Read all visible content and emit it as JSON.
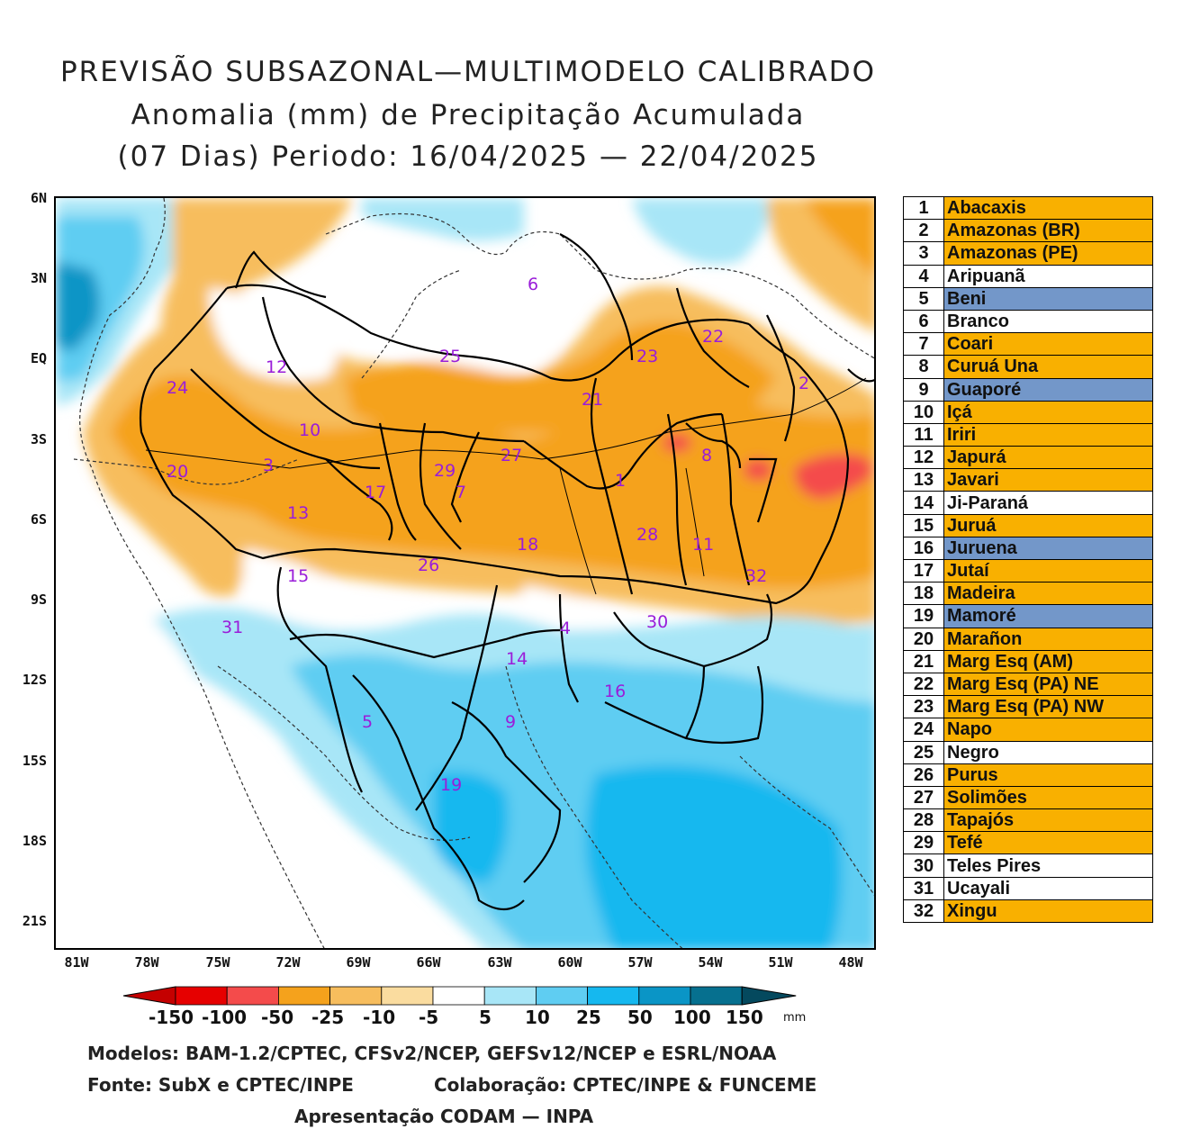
{
  "title": {
    "line1": "PREVISÃO SUBSAZONAL—MULTIMODELO CALIBRADO",
    "line2": "Anomalia (mm) de Precipitação Acumulada",
    "line3": "(07 Dias) Periodo: 16/04/2025 — 22/04/2025"
  },
  "axes": {
    "lat_labels": [
      "6N",
      "3N",
      "EQ",
      "3S",
      "6S",
      "9S",
      "12S",
      "15S",
      "18S",
      "21S"
    ],
    "lon_labels": [
      "81W",
      "78W",
      "75W",
      "72W",
      "69W",
      "66W",
      "63W",
      "60W",
      "57W",
      "54W",
      "51W",
      "48W"
    ]
  },
  "basins": [
    {
      "num": "1",
      "name": "Abacaxis",
      "status": "dry"
    },
    {
      "num": "2",
      "name": "Amazonas (BR)",
      "status": "dry"
    },
    {
      "num": "3",
      "name": "Amazonas (PE)",
      "status": "dry"
    },
    {
      "num": "4",
      "name": "Aripuanã",
      "status": "neutral"
    },
    {
      "num": "5",
      "name": "Beni",
      "status": "wet"
    },
    {
      "num": "6",
      "name": "Branco",
      "status": "neutral"
    },
    {
      "num": "7",
      "name": "Coari",
      "status": "dry"
    },
    {
      "num": "8",
      "name": "Curuá Una",
      "status": "dry"
    },
    {
      "num": "9",
      "name": "Guaporé",
      "status": "wet"
    },
    {
      "num": "10",
      "name": "Içá",
      "status": "dry"
    },
    {
      "num": "11",
      "name": "Iriri",
      "status": "dry"
    },
    {
      "num": "12",
      "name": "Japurá",
      "status": "dry"
    },
    {
      "num": "13",
      "name": "Javari",
      "status": "dry"
    },
    {
      "num": "14",
      "name": "Ji-Paraná",
      "status": "neutral"
    },
    {
      "num": "15",
      "name": "Juruá",
      "status": "dry"
    },
    {
      "num": "16",
      "name": "Juruena",
      "status": "wet"
    },
    {
      "num": "17",
      "name": "Jutaí",
      "status": "dry"
    },
    {
      "num": "18",
      "name": "Madeira",
      "status": "dry"
    },
    {
      "num": "19",
      "name": "Mamoré",
      "status": "wet"
    },
    {
      "num": "20",
      "name": "Marañon",
      "status": "dry"
    },
    {
      "num": "21",
      "name": "Marg Esq (AM)",
      "status": "dry"
    },
    {
      "num": "22",
      "name": "Marg Esq (PA) NE",
      "status": "dry"
    },
    {
      "num": "23",
      "name": "Marg Esq (PA) NW",
      "status": "dry"
    },
    {
      "num": "24",
      "name": "Napo",
      "status": "dry"
    },
    {
      "num": "25",
      "name": "Negro",
      "status": "neutral"
    },
    {
      "num": "26",
      "name": "Purus",
      "status": "dry"
    },
    {
      "num": "27",
      "name": "Solimões",
      "status": "dry"
    },
    {
      "num": "28",
      "name": "Tapajós",
      "status": "dry"
    },
    {
      "num": "29",
      "name": "Tefé",
      "status": "dry"
    },
    {
      "num": "30",
      "name": "Teles Pires",
      "status": "neutral"
    },
    {
      "num": "31",
      "name": "Ucayali",
      "status": "neutral"
    },
    {
      "num": "32",
      "name": "Xingu",
      "status": "dry"
    }
  ],
  "status_colors": {
    "dry": "#f9b000",
    "wet": "#7397c9",
    "neutral": "#ffffff"
  },
  "colorbar": {
    "labels": [
      "-150",
      "-100",
      "-50",
      "-25",
      "-10",
      "-5",
      "5",
      "10",
      "25",
      "50",
      "100",
      "150"
    ],
    "colors": [
      "#e60000",
      "#f44b4b",
      "#f5a21c",
      "#f7bd5d",
      "#fadc9f",
      "#ffffff",
      "#a8e6f7",
      "#5fcdf2",
      "#15b8ef",
      "#0a95c6",
      "#06708f"
    ],
    "low_tip": "#c40000",
    "high_tip": "#04495e",
    "unit": "mm"
  },
  "footer": {
    "models": "Modelos: BAM-1.2/CPTEC, CFSv2/NCEP, GEFSv12/NCEP e ESRL/NOAA",
    "source": "Fonte: SubX e CPTEC/INPE",
    "collab": "Colaboração: CPTEC/INPE & FUNCEME",
    "presented": "Apresentação CODAM — INPA"
  }
}
